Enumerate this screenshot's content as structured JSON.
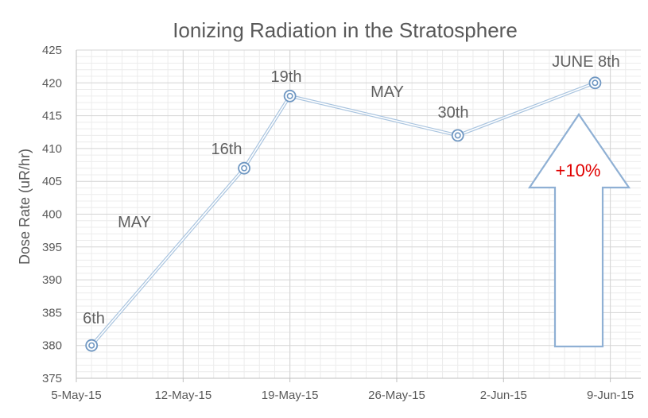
{
  "chart_data": {
    "type": "line",
    "title": "Ionizing Radiation in the Stratosphere",
    "xlabel": "",
    "ylabel": "Dose Rate (uR/hr)",
    "ylim": [
      375,
      425
    ],
    "yticks": [
      375,
      380,
      385,
      390,
      395,
      400,
      405,
      410,
      415,
      420,
      425
    ],
    "xlim": [
      "2015-05-05",
      "2015-06-11"
    ],
    "xticks": [
      {
        "date": "2015-05-05",
        "label": "5-May-15"
      },
      {
        "date": "2015-05-12",
        "label": "12-May-15"
      },
      {
        "date": "2015-05-19",
        "label": "19-May-15"
      },
      {
        "date": "2015-05-26",
        "label": "26-May-15"
      },
      {
        "date": "2015-06-02",
        "label": "2-Jun-15"
      },
      {
        "date": "2015-06-09",
        "label": "9-Jun-15"
      }
    ],
    "grid": true,
    "legend": "none",
    "series": [
      {
        "points": [
          {
            "x": "2015-05-06",
            "y": 380
          },
          {
            "x": "2015-05-16",
            "y": 407
          },
          {
            "x": "2015-05-19",
            "y": 418
          },
          {
            "x": "2015-05-30",
            "y": 412
          },
          {
            "x": "2015-06-08",
            "y": 420
          }
        ]
      }
    ],
    "annotations": [
      {
        "text": "6th"
      },
      {
        "text": "16th"
      },
      {
        "text": "19th"
      },
      {
        "text": "30th"
      },
      {
        "text": "JUNE 8th"
      },
      {
        "text": "MAY"
      },
      {
        "text": "MAY"
      },
      {
        "text": "+10%"
      }
    ],
    "colors": {
      "line": "#a9c4df",
      "marker": "#6f97c2",
      "arrow": "#8fb0d4",
      "highlight": "#e00000"
    }
  }
}
